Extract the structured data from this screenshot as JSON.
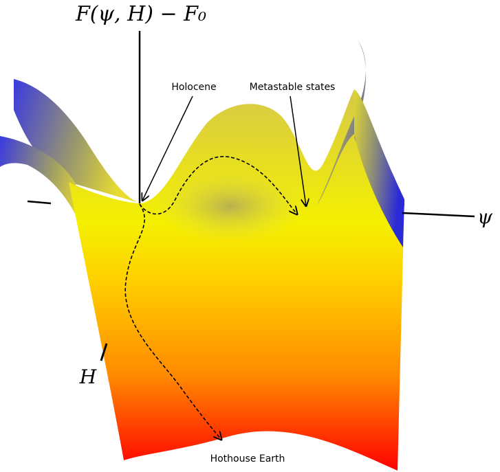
{
  "axes": {
    "vertical": "F(ψ, H) − F₀",
    "horizontal": "ψ",
    "depth": "H"
  },
  "annotations": {
    "holocene": "Holocene",
    "metastable": "Metastable states",
    "hothouse": "Hothouse Earth"
  }
}
